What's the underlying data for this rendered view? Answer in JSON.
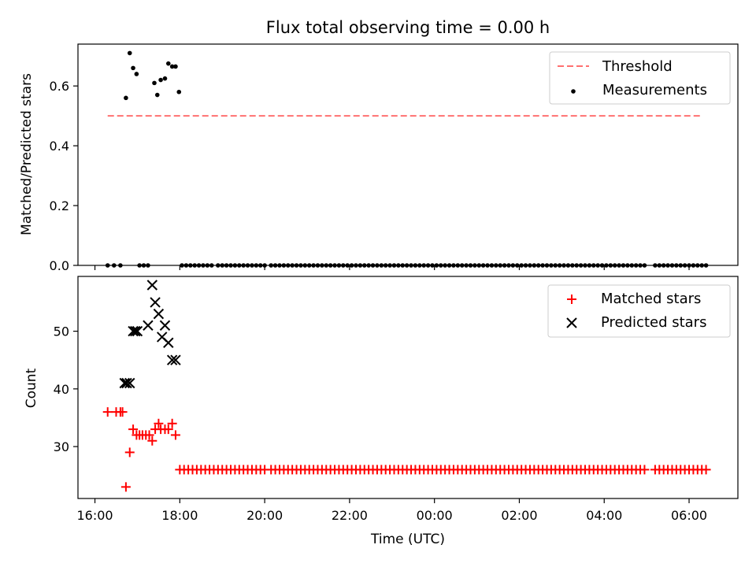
{
  "colors": {
    "threshold": "#ff7070",
    "measurement": "#000000",
    "matched": "#ff0000",
    "predicted": "#000000",
    "axes": "#000000",
    "legend_border": "#cccccc"
  },
  "chart_data": [
    {
      "type": "scatter",
      "title": "Flux total observing time = 0.00 h",
      "xlabel": "",
      "ylabel": "Matched/Predicted stars",
      "x_unit": "hours since 16:00 UTC",
      "xlim": [
        -0.4,
        15.15
      ],
      "ylim": [
        0.0,
        0.74
      ],
      "yticks": [
        0.0,
        0.2,
        0.4,
        0.6
      ],
      "ytick_labels": [
        "0.0",
        "0.2",
        "0.4",
        "0.6"
      ],
      "legend_position": "upper right",
      "series": [
        {
          "name": "Threshold",
          "kind": "dashed-line",
          "x": [
            0.3,
            14.3
          ],
          "y": [
            0.5,
            0.5
          ]
        },
        {
          "name": "Measurements",
          "kind": "dot",
          "x": [
            0.73,
            0.82,
            0.9,
            0.98,
            1.4,
            1.47,
            1.55,
            1.65,
            1.73,
            1.82,
            1.9,
            1.98
          ],
          "y": [
            0.56,
            0.71,
            0.66,
            0.64,
            0.61,
            0.57,
            0.62,
            0.625,
            0.675,
            0.665,
            0.665,
            0.58
          ],
          "zero_x_ranges": [
            [
              0.3,
              0.7,
              0.15
            ],
            [
              1.05,
              1.3,
              0.1
            ],
            [
              2.05,
              2.8,
              0.1
            ],
            [
              2.9,
              4.05,
              0.1
            ],
            [
              4.15,
              8.3,
              0.1
            ],
            [
              8.35,
              13.0,
              0.1
            ],
            [
              13.2,
              14.4,
              0.1
            ]
          ]
        }
      ]
    },
    {
      "type": "scatter",
      "title": "",
      "xlabel": "Time (UTC)",
      "ylabel": "Count",
      "x_unit": "hours since 16:00 UTC",
      "xlim": [
        -0.4,
        15.15
      ],
      "ylim": [
        21,
        59.5
      ],
      "yticks": [
        30,
        40,
        50
      ],
      "ytick_labels": [
        "30",
        "40",
        "50"
      ],
      "xticks": [
        0,
        2,
        4,
        6,
        8,
        10,
        12,
        14
      ],
      "xtick_labels": [
        "16:00",
        "18:00",
        "20:00",
        "22:00",
        "00:00",
        "02:00",
        "04:00",
        "06:00"
      ],
      "legend_position": "upper right",
      "series": [
        {
          "name": "Matched stars",
          "marker": "plus",
          "x": [
            0.3,
            0.5,
            0.6,
            0.65,
            0.73,
            0.82,
            0.9,
            0.98,
            1.05,
            1.12,
            1.2,
            1.28,
            1.35,
            1.42,
            1.5,
            1.55,
            1.65,
            1.73,
            1.82,
            1.9
          ],
          "y": [
            36,
            36,
            36,
            36,
            23,
            29,
            33,
            32,
            32,
            32,
            32,
            32,
            31,
            33,
            34,
            33,
            33,
            33,
            34,
            32
          ],
          "flat_value": 26,
          "flat_x_ranges": [
            [
              2.0,
              2.8,
              0.1
            ],
            [
              2.9,
              4.05,
              0.1
            ],
            [
              4.15,
              8.3,
              0.1
            ],
            [
              8.35,
              13.0,
              0.1
            ],
            [
              13.2,
              14.4,
              0.1
            ]
          ]
        },
        {
          "name": "Predicted stars",
          "marker": "x",
          "x": [
            0.7,
            0.75,
            0.82,
            0.9,
            0.95,
            1.0,
            1.25,
            1.35,
            1.42,
            1.5,
            1.58,
            1.65,
            1.73,
            1.82,
            1.9
          ],
          "y": [
            41,
            41,
            41,
            50,
            50,
            50,
            51,
            58,
            55,
            53,
            49,
            51,
            48,
            45,
            45
          ]
        }
      ]
    }
  ]
}
